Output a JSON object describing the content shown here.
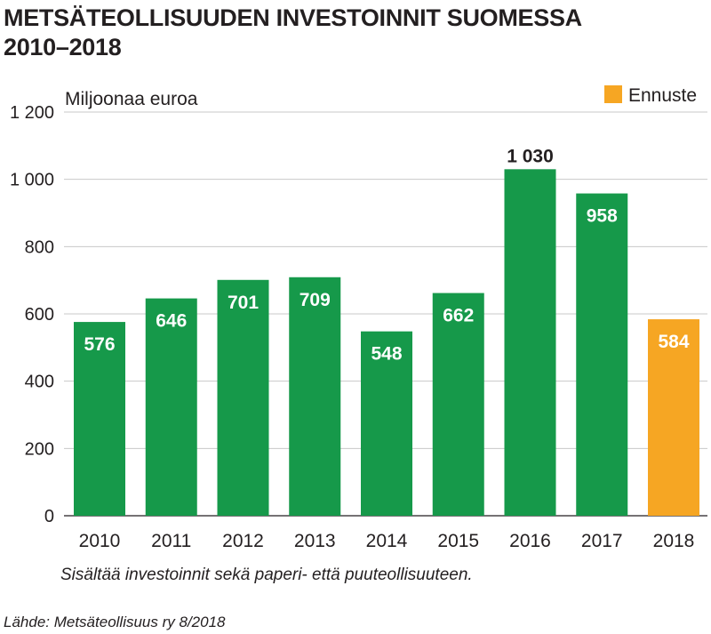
{
  "chart_data": {
    "type": "bar",
    "title": "METSÄTEOLLISUUDEN INVESTOINNIT SUOMESSA",
    "title_line2": "2010–2018",
    "ylabel": "Miljoonaa euroa",
    "ylim": [
      0,
      1200
    ],
    "yticks": [
      0,
      200,
      400,
      600,
      800,
      1000,
      1200
    ],
    "ytick_labels": [
      "0",
      "200",
      "400",
      "600",
      "800",
      "1 000",
      "1 200"
    ],
    "grid": true,
    "categories": [
      "2010",
      "2011",
      "2012",
      "2013",
      "2014",
      "2015",
      "2016",
      "2017",
      "2018"
    ],
    "values": [
      576,
      646,
      701,
      709,
      548,
      662,
      1030,
      958,
      584
    ],
    "value_labels": [
      "576",
      "646",
      "701",
      "709",
      "548",
      "662",
      "1 030",
      "958",
      "584"
    ],
    "forecast": [
      false,
      false,
      false,
      false,
      false,
      false,
      false,
      false,
      true
    ],
    "legend": {
      "label": "Ennuste",
      "placement": "top-right"
    },
    "colors": {
      "actual": "#16994a",
      "forecast": "#f6a623",
      "grid": "#c8c8c8",
      "text": "#231f20"
    }
  },
  "note": "Sisältää investoinnit sekä paperi- että puuteollisuuteen.",
  "source": "Lähde: Metsäteollisuus ry 8/2018"
}
